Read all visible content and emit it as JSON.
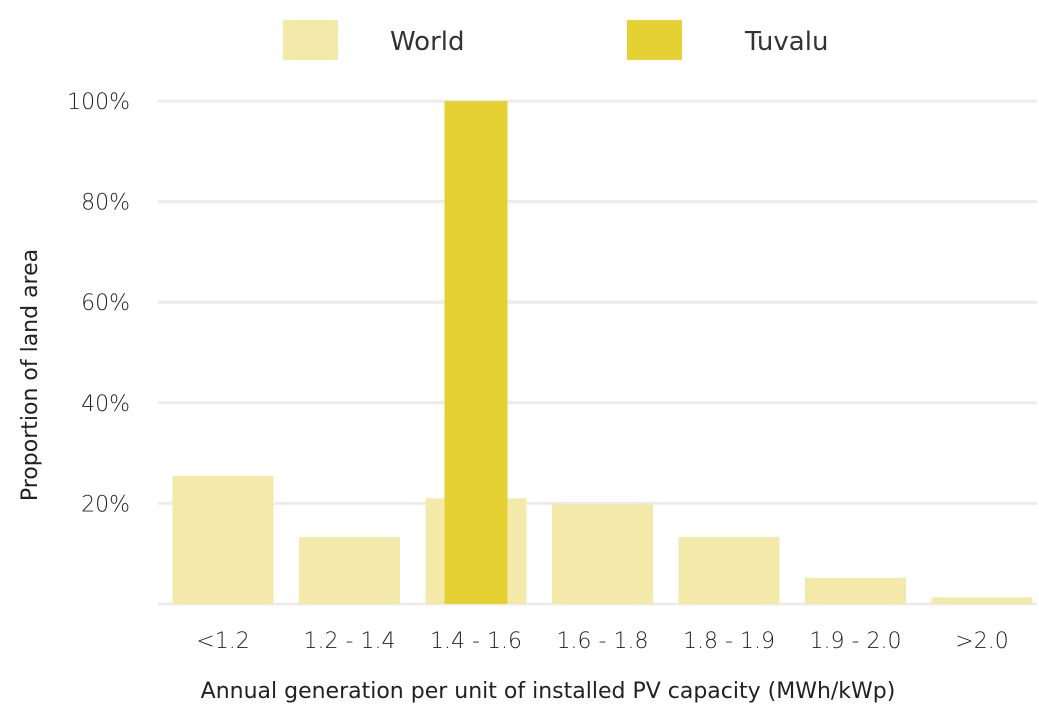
{
  "chart_data": {
    "type": "bar",
    "categories": [
      "<1.2",
      "1.2 - 1.4",
      "1.4 - 1.6",
      "1.6 - 1.8",
      "1.8 - 1.9",
      "1.9 - 2.0",
      ">2.0"
    ],
    "series": [
      {
        "name": "World",
        "values": [
          25.5,
          13.3,
          21.0,
          19.8,
          13.3,
          5.2,
          1.3
        ],
        "color": "#f3eaaa"
      },
      {
        "name": "Tuvalu",
        "values": [
          0,
          0,
          100,
          0,
          0,
          0,
          0
        ],
        "color": "#e5d132"
      }
    ],
    "xlabel": "Annual generation per unit of installed PV capacity (MWh/kWp)",
    "ylabel": "Proportion of land area",
    "yticks": [
      "20%",
      "40%",
      "60%",
      "80%",
      "100%"
    ],
    "ylim": [
      0,
      100
    ],
    "grid": true,
    "legend_position": "top"
  }
}
